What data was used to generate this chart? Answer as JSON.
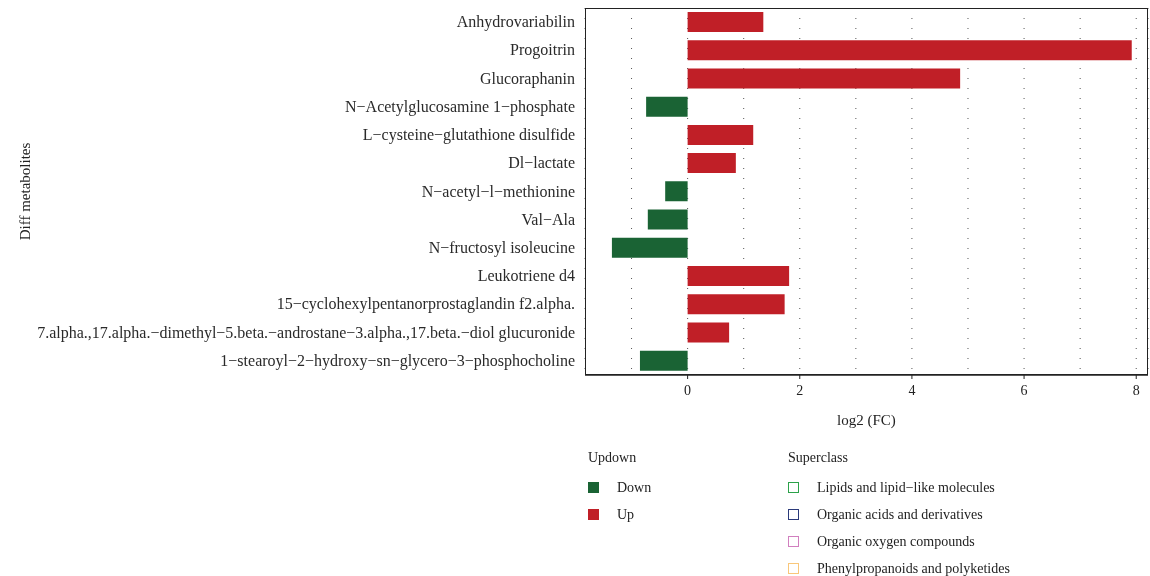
{
  "chart_data": {
    "type": "bar",
    "orientation": "horizontal",
    "stacked": true,
    "xlabel": "log2 (FC)",
    "ylabel": "Diff metabolites",
    "legend_title": [
      "Updown",
      "Superclass"
    ],
    "categories": [
      "Anhydrovariabilin",
      "Progoitrin",
      "Glucoraphanin",
      "N−Acetylglucosamine 1−phosphate",
      "L−cysteine−glutathione disulfide",
      "Dl−lactate",
      "N−acetyl−l−methionine",
      "Val−Ala",
      "N−fructosyl isoleucine",
      "Leukotriene d4",
      "15−cyclohexylpentanorprostaglandin f2.alpha.",
      "7.alpha.,17.alpha.−dimethyl−5.beta.−androstane−3.alpha.,17.beta.−diol glucuronide",
      "1−stearoyl−2−hydroxy−sn−glycero−3−phosphocholine"
    ],
    "series": [
      {
        "name": "Down",
        "color": "#1a6334",
        "values": [
          null,
          null,
          null,
          -0.74,
          null,
          null,
          -0.4,
          -0.71,
          -1.35,
          null,
          null,
          null,
          -0.85
        ]
      },
      {
        "name": "Up",
        "color": "#c01f27",
        "values": [
          1.35,
          7.92,
          4.86,
          null,
          1.17,
          0.86,
          null,
          null,
          null,
          1.81,
          1.73,
          0.74,
          null
        ]
      },
      {
        "name": "Lipids and lipid−like molecules",
        "color": "#2ca24a",
        "type": "other",
        "values": [
          null,
          null,
          null,
          null,
          null,
          null,
          null,
          null,
          null,
          null,
          null,
          null,
          null
        ]
      },
      {
        "name": "Organic acids and derivatives",
        "color": "#2b3a7a",
        "type": "other",
        "values": [
          null,
          null,
          null,
          null,
          null,
          null,
          null,
          null,
          null,
          null,
          null,
          null,
          null
        ]
      },
      {
        "name": "Organic oxygen compounds",
        "color": "#d17fbf",
        "type": "other",
        "values": [
          null,
          null,
          null,
          null,
          null,
          null,
          null,
          null,
          null,
          null,
          null,
          null,
          null
        ]
      },
      {
        "name": "Phenylpropanoids and polyketides",
        "color": "#f9c77a",
        "type": "other",
        "values": [
          null,
          null,
          null,
          null,
          null,
          null,
          null,
          null,
          null,
          null,
          null,
          null,
          null
        ]
      }
    ],
    "xlim": [
      -1.83,
      8.21
    ],
    "xticks": [
      {
        "value": -1,
        "label": null
      },
      0,
      {
        "value": 1,
        "label": null
      },
      2,
      {
        "value": 3,
        "label": null
      },
      4,
      {
        "value": 5,
        "label": null
      },
      6,
      {
        "value": 7,
        "label": null
      },
      8
    ],
    "grid": "x",
    "legend": "bottom"
  }
}
